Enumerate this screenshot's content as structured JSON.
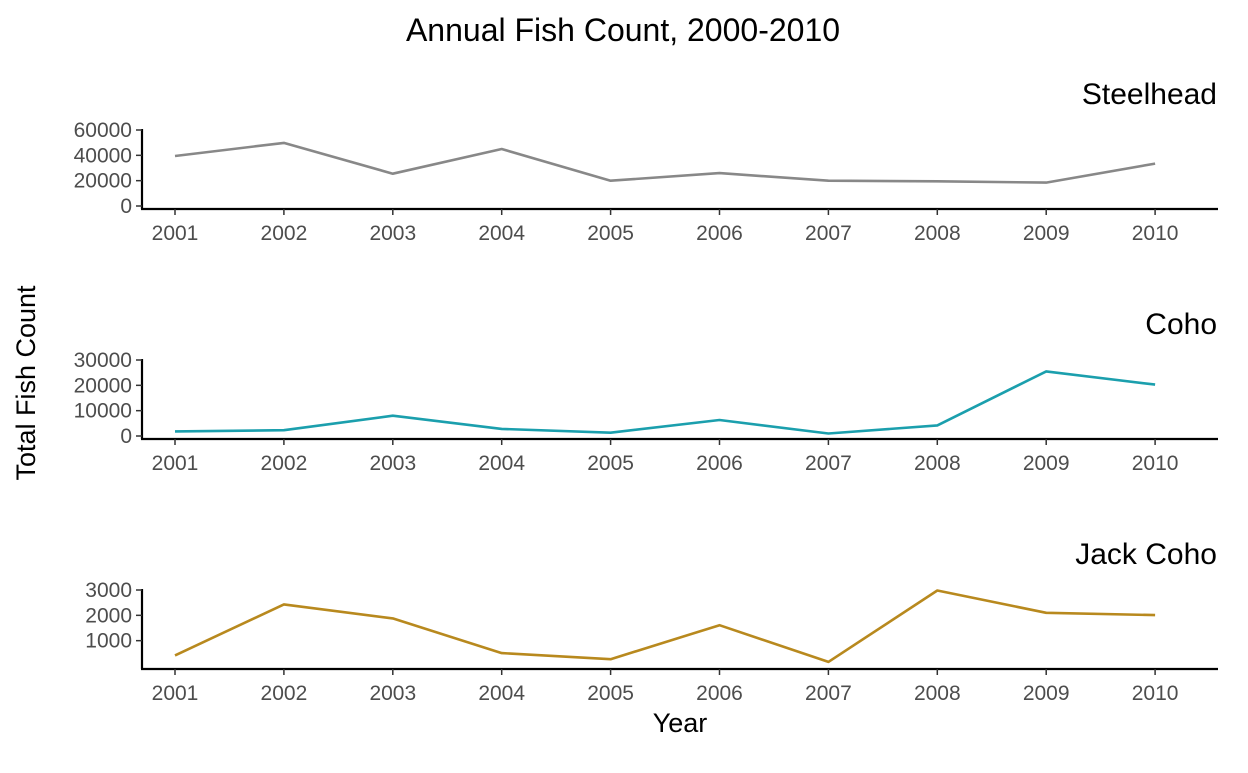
{
  "chart_data": {
    "type": "line",
    "title": "Annual Fish Count, 2000-2010",
    "xlabel": "Year",
    "ylabel": "Total Fish Count",
    "grid": false,
    "legend": "none",
    "x": [
      "2001",
      "2002",
      "2003",
      "2004",
      "2005",
      "2006",
      "2007",
      "2008",
      "2009",
      "2010"
    ],
    "panels": [
      {
        "name": "Steelhead",
        "color": "#888888",
        "ylim": [
          0,
          60000
        ],
        "yticks": [
          "0",
          "20000",
          "40000",
          "60000"
        ],
        "values": [
          39500,
          49800,
          25500,
          45000,
          20000,
          26000,
          20000,
          19500,
          18500,
          33500
        ]
      },
      {
        "name": "Coho",
        "color": "#1b9fad",
        "ylim": [
          0,
          30000
        ],
        "yticks": [
          "0",
          "10000",
          "20000",
          "30000"
        ],
        "values": [
          1800,
          2300,
          8000,
          2800,
          1300,
          6300,
          1000,
          4200,
          25500,
          20300
        ]
      },
      {
        "name": "Jack Coho",
        "color": "#b8891e",
        "ylim": [
          0,
          3000
        ],
        "yticks": [
          "1000",
          "2000",
          "3000"
        ],
        "values": [
          420,
          2430,
          1880,
          510,
          270,
          1610,
          160,
          2980,
          2100,
          2010
        ]
      }
    ]
  }
}
